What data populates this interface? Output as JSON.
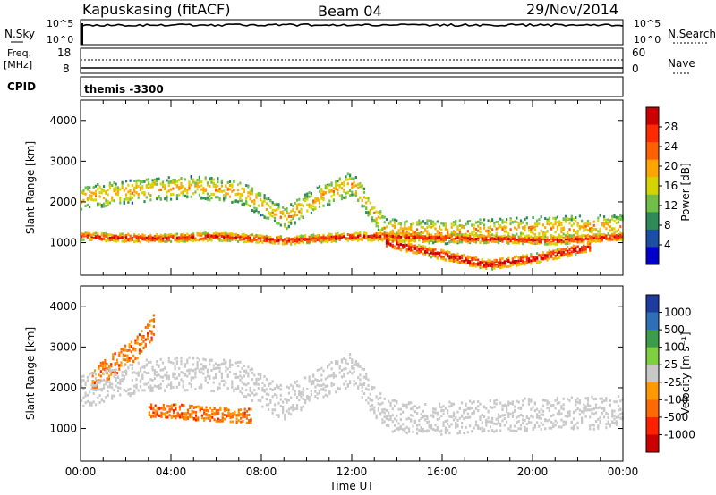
{
  "header": {
    "site": "Kapuskasing (fitACF)",
    "beam": "Beam 04",
    "date": "29/Nov/2014"
  },
  "strips": {
    "nsky": {
      "label": "N.Sky",
      "right_label": "N.Search",
      "ticks": [
        "10^5",
        "10^0"
      ]
    },
    "freq": {
      "label_top": "Freq.",
      "label_bottom": "[MHz]",
      "right_label": "Nave",
      "ticks_left": [
        "18",
        "8"
      ],
      "ticks_right": [
        "60",
        "0"
      ]
    },
    "cpid": {
      "label": "CPID",
      "program": "themis -3300"
    }
  },
  "colors": {
    "power": [
      "#0000cc",
      "#1a4fa3",
      "#2e8b57",
      "#6fbf4a",
      "#d4d400",
      "#ffa500",
      "#ff6000",
      "#ff2a00",
      "#cc0000"
    ],
    "velocity": [
      "#1e3ca0",
      "#2e6fb8",
      "#3d9c4a",
      "#7fd040",
      "#c8c8c8",
      "#ff9900",
      "#ff6a00",
      "#ff2000",
      "#cc0000"
    ],
    "ground": "#c8c8c8"
  },
  "chart_data": [
    {
      "type": "heatmap",
      "name": "Power",
      "ylabel": "Slant Range [km]",
      "yticks": [
        "1000",
        "2000",
        "3000",
        "4000"
      ],
      "ylim": [
        200,
        4500
      ],
      "xlim": [
        0,
        24
      ],
      "colorbar_title": "Power [dB]",
      "colorbar_ticks": [
        "28",
        "24",
        "20",
        "16",
        "12",
        "8",
        "4"
      ],
      "colorbar_range": [
        0,
        30
      ],
      "echo_bands": [
        {
          "x": [
            0,
            3,
            5,
            7,
            9,
            10.5,
            12,
            13.5,
            16,
            20,
            24
          ],
          "center": [
            2100,
            2300,
            2350,
            2250,
            1600,
            2100,
            2450,
            1300,
            1250,
            1350,
            1400
          ],
          "width": 350,
          "value": 15
        },
        {
          "x": [
            0,
            3,
            6,
            9,
            12,
            13.5,
            17,
            21,
            24
          ],
          "center": [
            1150,
            1100,
            1150,
            1050,
            1150,
            1150,
            1100,
            1050,
            1150
          ],
          "width": 120,
          "value": 22
        },
        {
          "x": [
            13.5,
            16,
            18,
            20,
            22.5
          ],
          "center": [
            1000,
            700,
            450,
            600,
            900
          ],
          "width": 150,
          "value": 24
        }
      ]
    },
    {
      "type": "heatmap",
      "name": "Velocity",
      "ylabel": "Slant Range [km]",
      "yticks": [
        "1000",
        "2000",
        "3000",
        "4000"
      ],
      "ylim": [
        200,
        4500
      ],
      "xlim": [
        0,
        24
      ],
      "xlabel": "Time UT",
      "xticks": [
        "00:00",
        "04:00",
        "08:00",
        "12:00",
        "16:00",
        "20:00",
        "00:00"
      ],
      "colorbar_title": "Velocity [m s⁻¹]",
      "colorbar_ticks": [
        "1000",
        "500",
        "100",
        "25",
        "-25",
        "-100",
        "-500",
        "-1000"
      ],
      "colorbar_range": [
        -1000,
        1000
      ],
      "echo_bands": [
        {
          "x": [
            0.5,
            1.5,
            2.5,
            3.2
          ],
          "center": [
            2200,
            2600,
            3000,
            3500
          ],
          "width": 350,
          "value": -300
        },
        {
          "x": [
            3,
            4.5,
            6,
            7.5
          ],
          "center": [
            1450,
            1400,
            1350,
            1300
          ],
          "width": 220,
          "value": -250
        },
        {
          "x": [
            0,
            3,
            5,
            7,
            9,
            10.5,
            12,
            13.5,
            16,
            20,
            24
          ],
          "center": [
            1900,
            2300,
            2350,
            2250,
            1600,
            2100,
            2450,
            1300,
            1250,
            1350,
            1400
          ],
          "width": 500,
          "value": 0
        }
      ]
    }
  ]
}
